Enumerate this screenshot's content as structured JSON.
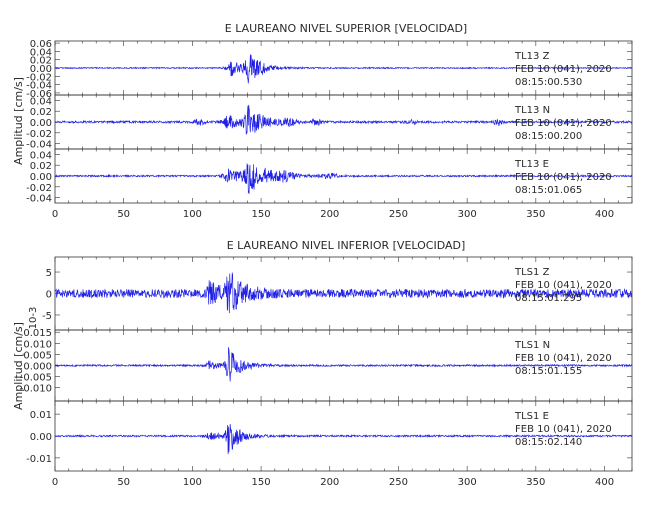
{
  "chart_data": [
    {
      "type": "line",
      "title": "E LAUREANO NIVEL SUPERIOR [VELOCIDAD]",
      "ylabel": "Amplitud [cm/s]",
      "xlim": [
        0,
        420
      ],
      "x_ticks": [
        "0",
        "50",
        "100",
        "150",
        "200",
        "250",
        "300",
        "350",
        "400"
      ],
      "color": "#1f1fe6",
      "panels": [
        {
          "component": "Z",
          "station": "TL13",
          "date": "FEB 10 (041), 2020",
          "time": "08:15:00.530",
          "ylim": [
            -0.065,
            0.065
          ],
          "y_ticks": [
            "0.06",
            "0.04",
            "0.02",
            "0.00",
            "-0.02",
            "-0.04",
            "-0.06"
          ],
          "y_tick_values": [
            0.06,
            0.04,
            0.02,
            0.0,
            -0.02,
            -0.04,
            -0.06
          ],
          "background": 0.0015,
          "events": [
            {
              "t": 128,
              "peak": 0.02,
              "decay": 10,
              "rise": 2
            },
            {
              "t": 140,
              "peak": 0.045,
              "decay": 8,
              "rise": 1.5
            }
          ],
          "wave_packets": []
        },
        {
          "component": "N",
          "station": "TL13",
          "date": "FEB 10 (041), 2020",
          "time": "08:15:00.200",
          "ylim": [
            -0.05,
            0.05
          ],
          "y_ticks": [
            "0.04",
            "0.02",
            "0.00",
            "-0.02",
            "-0.04"
          ],
          "y_tick_values": [
            0.04,
            0.02,
            0.0,
            -0.02,
            -0.04
          ],
          "background": 0.002,
          "events": [
            {
              "t": 125,
              "peak": 0.014,
              "decay": 12,
              "rise": 2
            },
            {
              "t": 140,
              "peak": 0.03,
              "decay": 10,
              "rise": 1.5
            }
          ],
          "wave_packets": [
            {
              "t": 105,
              "amp": 0.005,
              "width": 4
            },
            {
              "t": 170,
              "amp": 0.006,
              "width": 5
            },
            {
              "t": 190,
              "amp": 0.005,
              "width": 4
            },
            {
              "t": 260,
              "amp": 0.004,
              "width": 4
            },
            {
              "t": 322,
              "amp": 0.006,
              "width": 3
            }
          ]
        },
        {
          "component": "E",
          "station": "TL13",
          "date": "FEB 10 (041), 2020",
          "time": "08:15:01.065",
          "ylim": [
            -0.05,
            0.05
          ],
          "y_ticks": [
            "0.04",
            "0.02",
            "0.00",
            "-0.02",
            "-0.04"
          ],
          "y_tick_values": [
            0.04,
            0.02,
            0.0,
            -0.02,
            -0.04
          ],
          "background": 0.0015,
          "events": [
            {
              "t": 125,
              "peak": 0.014,
              "decay": 14,
              "rise": 2
            },
            {
              "t": 140,
              "peak": 0.03,
              "decay": 14,
              "rise": 1.5
            }
          ],
          "wave_packets": [
            {
              "t": 168,
              "amp": 0.006,
              "width": 6
            },
            {
              "t": 200,
              "amp": 0.004,
              "width": 6
            }
          ]
        }
      ]
    },
    {
      "type": "line",
      "title": "E LAUREANO NIVEL INFERIOR [VELOCIDAD]",
      "ylabel": "Amplitud [cm/s]",
      "scale_label": "10-3",
      "xlim": [
        0,
        420
      ],
      "x_ticks": [
        "0",
        "50",
        "100",
        "150",
        "200",
        "250",
        "300",
        "350",
        "400"
      ],
      "color": "#1f1fe6",
      "panels": [
        {
          "component": "Z",
          "station": "TLS1",
          "date": "FEB 10 (041), 2020",
          "time": "08:15:01.295",
          "ylim": [
            -8.5,
            8.5
          ],
          "y_ticks": [
            "5",
            "0",
            "-5"
          ],
          "y_tick_values": [
            5,
            0,
            -5
          ],
          "background": 1.0,
          "events": [
            {
              "t": 112,
              "peak": 2.5,
              "decay": 8,
              "rise": 1.5
            },
            {
              "t": 126,
              "peak": 5.0,
              "decay": 10,
              "rise": 1.5
            }
          ],
          "wave_packets": []
        },
        {
          "component": "N",
          "station": "TLS1",
          "date": "FEB 10 (041), 2020",
          "time": "08:15:01.155",
          "ylim": [
            -0.016,
            0.016
          ],
          "y_ticks": [
            "0.015",
            "0.010",
            "0.005",
            "0.000",
            "-0.005",
            "-0.010"
          ],
          "y_tick_values": [
            0.015,
            0.01,
            0.005,
            0.0,
            -0.005,
            -0.01
          ],
          "background": 0.0004,
          "events": [
            {
              "t": 112,
              "peak": 0.002,
              "decay": 8,
              "rise": 1.5
            },
            {
              "t": 126,
              "peak": 0.009,
              "decay": 8,
              "rise": 1.2
            }
          ],
          "wave_packets": []
        },
        {
          "component": "E",
          "station": "TLS1",
          "date": "FEB 10 (041), 2020",
          "time": "08:15:02.140",
          "ylim": [
            -0.016,
            0.016
          ],
          "y_ticks": [
            "0.01",
            "0.00",
            "-0.01"
          ],
          "y_tick_values": [
            0.01,
            0.0,
            -0.01
          ],
          "background": 0.0004,
          "events": [
            {
              "t": 112,
              "peak": 0.002,
              "decay": 8,
              "rise": 1.5
            },
            {
              "t": 126,
              "peak": 0.008,
              "decay": 8,
              "rise": 1.2
            }
          ],
          "wave_packets": []
        }
      ]
    }
  ]
}
